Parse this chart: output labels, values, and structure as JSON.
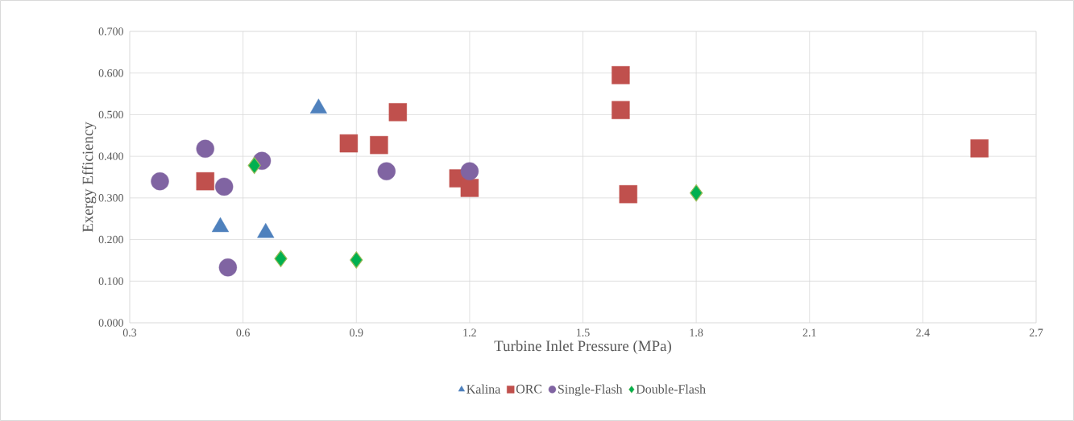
{
  "chart_data": {
    "type": "scatter",
    "xlabel": "Turbine Inlet Pressure (MPa)",
    "ylabel": "Exergy Efficiency",
    "xlim": [
      0.3,
      2.7
    ],
    "xticks": [
      0.3,
      0.6,
      0.9,
      1.2,
      1.5,
      1.8,
      2.1,
      2.4,
      2.7
    ],
    "ylim": [
      0,
      0.7
    ],
    "yticks": [
      {
        "value": 0,
        "label": "0.000"
      },
      {
        "value": 0.1,
        "label": "0.100"
      },
      {
        "value": 0.2,
        "label": "0.200"
      },
      {
        "value": 0.3,
        "label": "0.300"
      },
      {
        "value": 0.4,
        "label": "0.400"
      },
      {
        "value": 0.5,
        "label": "0.500"
      },
      {
        "value": 0.6,
        "label": "0.600"
      },
      {
        "value": 0.7,
        "label": "0.700"
      }
    ],
    "grid": true,
    "legend": "bottom",
    "series": [
      {
        "name": "Kalina",
        "color": "#4f81bd",
        "marker": "triangle",
        "x": [
          0.8,
          0.54,
          0.66
        ],
        "values": [
          0.515,
          0.23,
          0.216
        ]
      },
      {
        "name": "ORC",
        "color": "#c0504d",
        "marker": "square",
        "x": [
          0.5,
          0.88,
          0.96,
          1.01,
          1.17,
          1.2,
          1.6,
          1.6,
          1.62,
          2.55
        ],
        "values": [
          0.34,
          0.431,
          0.427,
          0.506,
          0.347,
          0.324,
          0.595,
          0.511,
          0.309,
          0.419
        ]
      },
      {
        "name": "Double-Flash",
        "color": "#00b050",
        "marker": "diamond",
        "x": [
          0.63,
          0.7,
          0.9,
          1.8
        ],
        "values": [
          0.378,
          0.154,
          0.151,
          0.312
        ]
      },
      {
        "name": "Single-Flash",
        "color": "#8064a2",
        "marker": "circle",
        "x": [
          0.38,
          0.5,
          0.55,
          0.65,
          0.56,
          0.98,
          1.2
        ],
        "values": [
          0.34,
          0.418,
          0.327,
          0.389,
          0.133,
          0.364,
          0.364
        ]
      }
    ]
  }
}
